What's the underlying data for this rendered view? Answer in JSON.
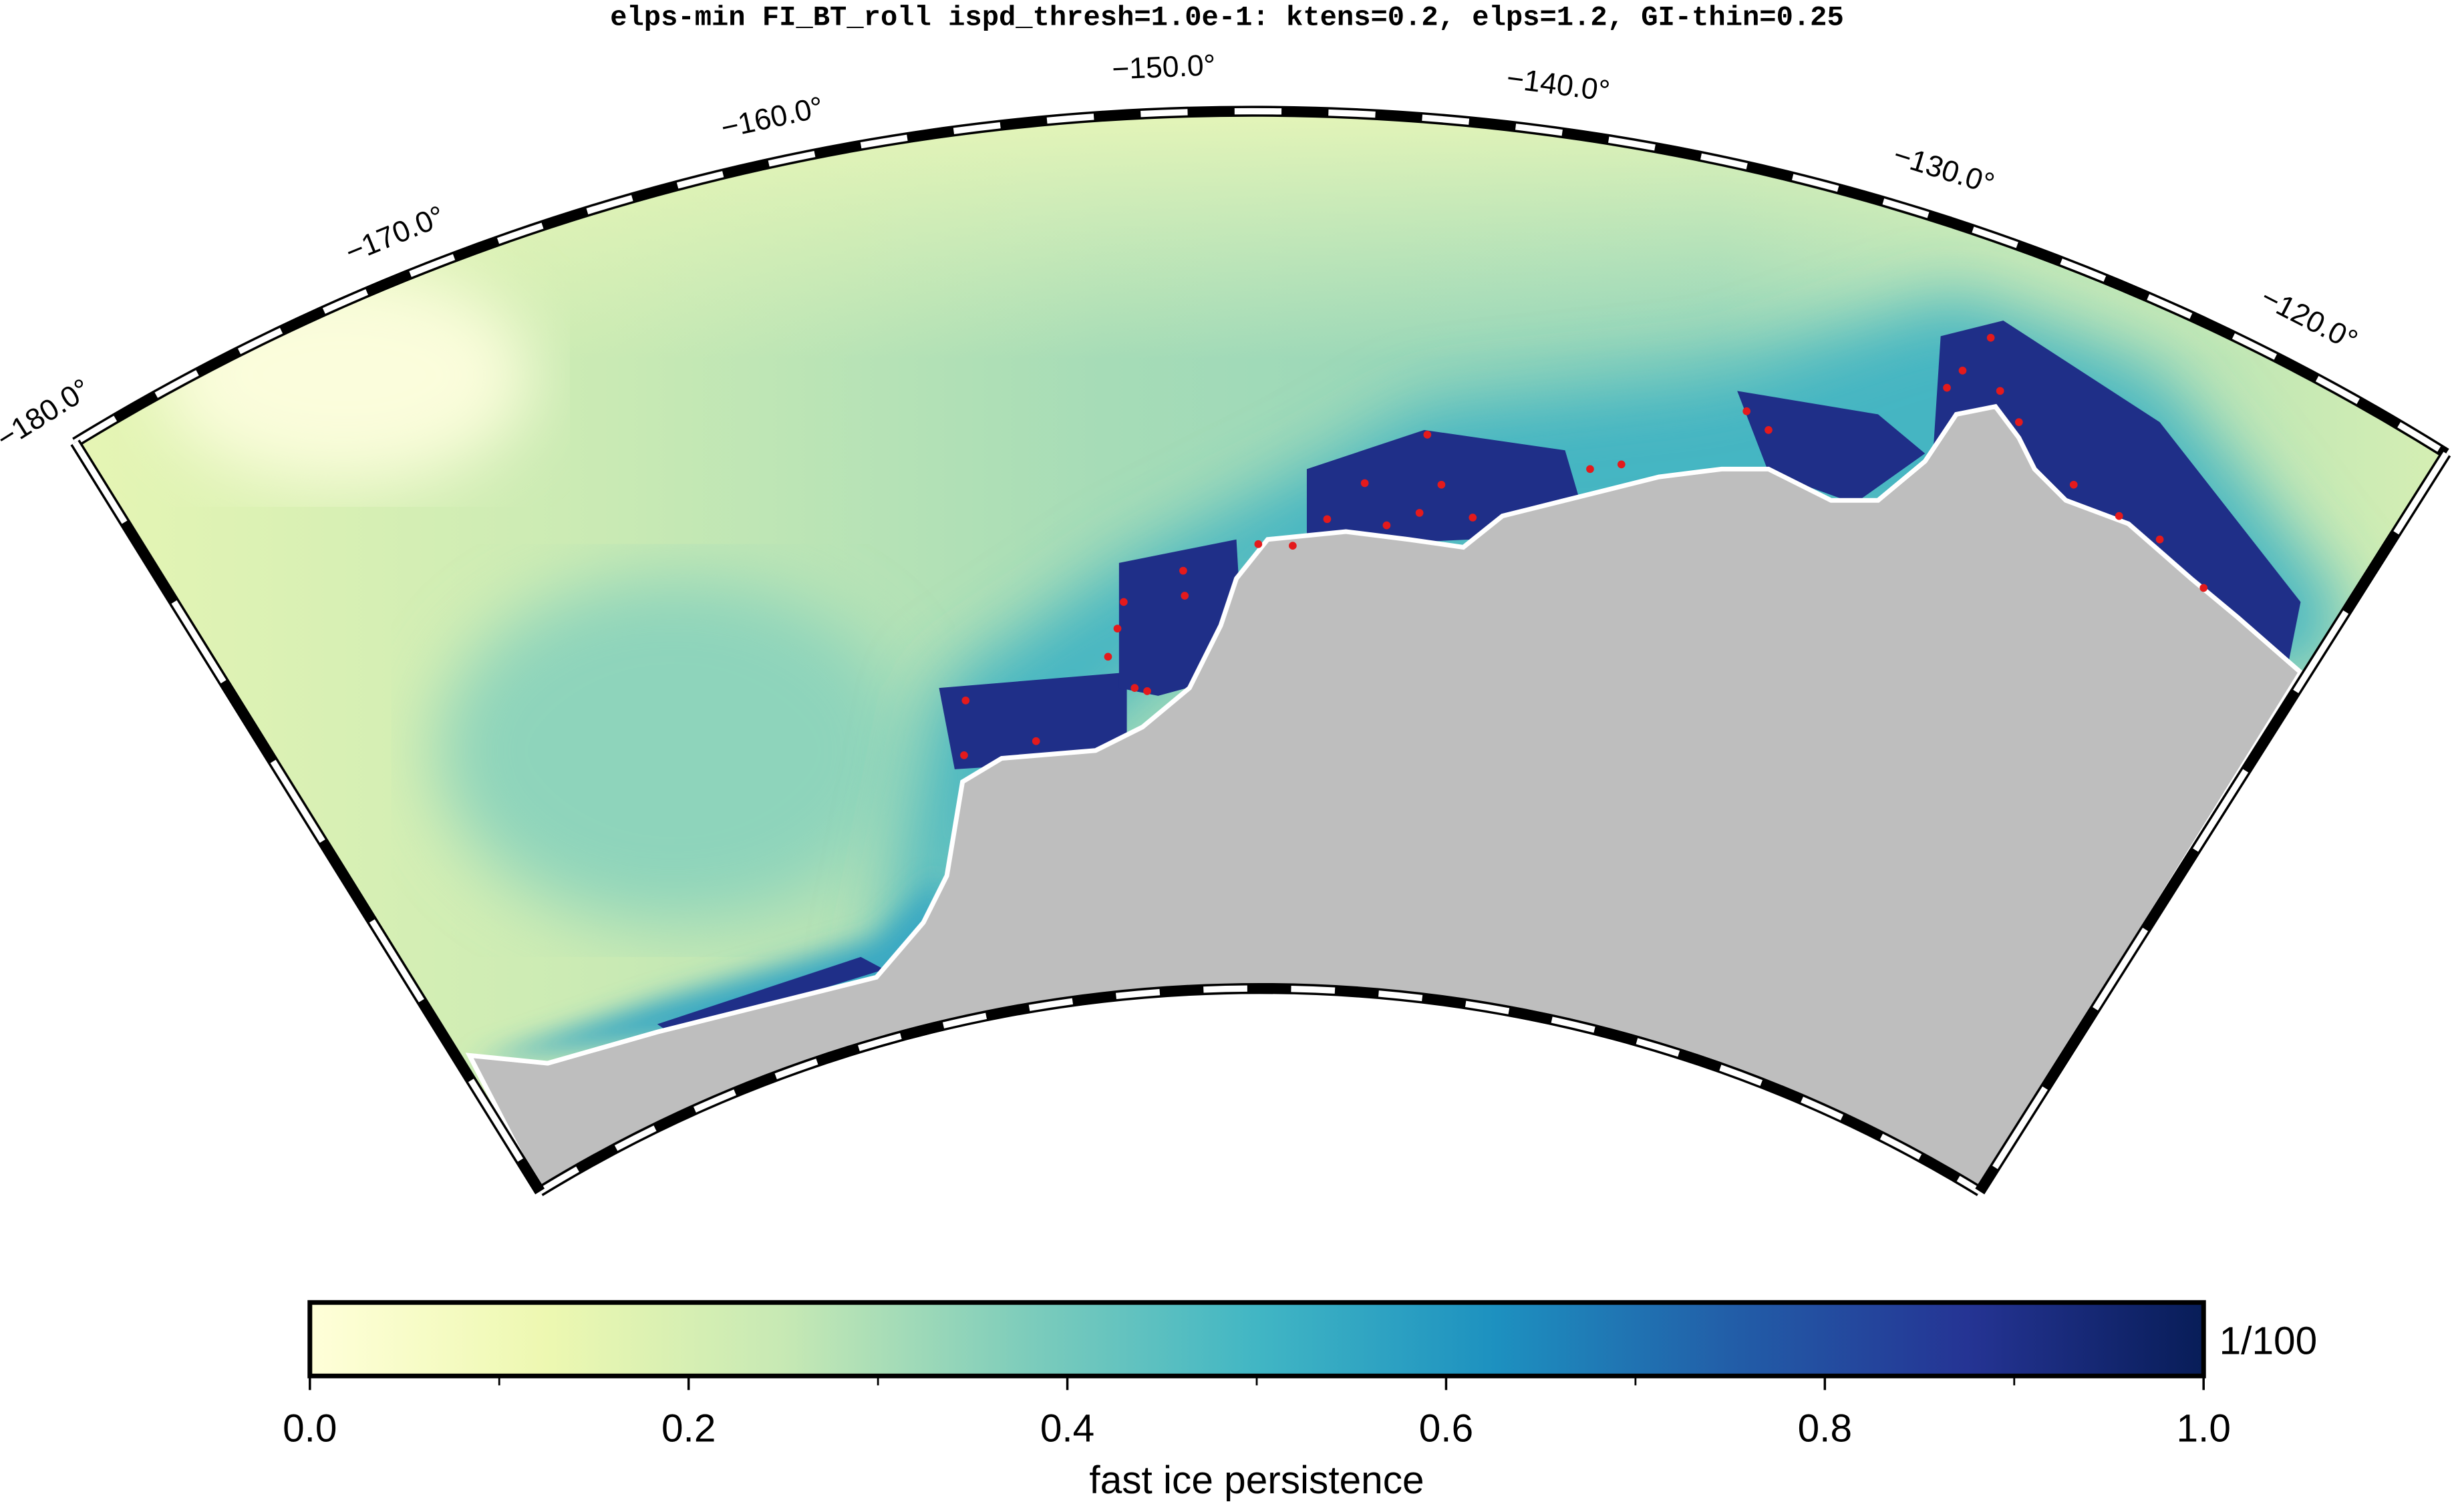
{
  "map": {
    "title": "elps-min FI_BT_roll ispd_thresh=1.0e-1: ktens=0.2, elps=1.2, GI-thin=0.25",
    "longitude_labels": [
      {
        "value": -180,
        "label": "−180.0°"
      },
      {
        "value": -170,
        "label": "−170.0°"
      },
      {
        "value": -160,
        "label": "−160.0°"
      },
      {
        "value": -150,
        "label": "−150.0°"
      },
      {
        "value": -140,
        "label": "−140.0°"
      },
      {
        "value": -130,
        "label": "−130.0°"
      },
      {
        "value": -120,
        "label": "−120.0°"
      }
    ],
    "colorbar": {
      "label": "fast ice persistence",
      "unit": "1/100",
      "lim": [
        0,
        1
      ],
      "ticks": [
        {
          "value": 0,
          "label": "0.0"
        },
        {
          "value": 0.2,
          "label": "0.2"
        },
        {
          "value": 0.4,
          "label": "0.4"
        },
        {
          "value": 0.6,
          "label": "0.6"
        },
        {
          "value": 0.8,
          "label": "0.8"
        },
        {
          "value": 1,
          "label": "1.0"
        }
      ],
      "minor_ticks": [
        0.1,
        0.3,
        0.5,
        0.7,
        0.9
      ],
      "colors": [
        "#ffffd9",
        "#edf8b1",
        "#c7e9b4",
        "#7fcdbb",
        "#41b6c4",
        "#1d91c0",
        "#225ea8",
        "#253494",
        "#081d58"
      ]
    }
  }
}
